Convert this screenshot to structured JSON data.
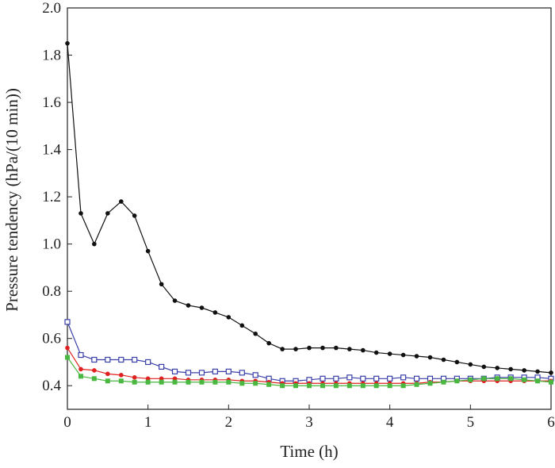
{
  "chart_data": {
    "type": "line",
    "title": "",
    "xlabel": "Time (h)",
    "ylabel": "Pressure  tendency (hPa/(10 min))",
    "xlim": [
      0,
      6
    ],
    "ylim": [
      0.3,
      2.0
    ],
    "xticks": [
      0,
      1,
      2,
      3,
      4,
      5,
      6
    ],
    "yticks": [
      0.4,
      0.6,
      0.8,
      1.0,
      1.2,
      1.4,
      1.6,
      1.8,
      2.0
    ],
    "x": [
      0,
      0.167,
      0.333,
      0.5,
      0.667,
      0.833,
      1.0,
      1.167,
      1.333,
      1.5,
      1.667,
      1.833,
      2.0,
      2.167,
      2.333,
      2.5,
      2.667,
      2.833,
      3.0,
      3.167,
      3.333,
      3.5,
      3.667,
      3.833,
      4.0,
      4.167,
      4.333,
      4.5,
      4.667,
      4.833,
      5.0,
      5.167,
      5.333,
      5.5,
      5.667,
      5.833,
      6.0
    ],
    "grid": false,
    "legend": "none",
    "series": [
      {
        "color": "#111111",
        "marker": "filled-circle",
        "values": [
          1.85,
          1.13,
          1.0,
          1.13,
          1.18,
          1.12,
          0.97,
          0.83,
          0.76,
          0.74,
          0.73,
          0.71,
          0.69,
          0.655,
          0.62,
          0.58,
          0.555,
          0.555,
          0.56,
          0.56,
          0.56,
          0.555,
          0.55,
          0.54,
          0.535,
          0.53,
          0.525,
          0.52,
          0.51,
          0.5,
          0.49,
          0.48,
          0.475,
          0.47,
          0.465,
          0.46,
          0.455
        ]
      },
      {
        "color": "#3a3fa8",
        "marker": "open-square",
        "values": [
          0.67,
          0.53,
          0.51,
          0.51,
          0.51,
          0.51,
          0.5,
          0.48,
          0.46,
          0.455,
          0.455,
          0.46,
          0.46,
          0.455,
          0.445,
          0.43,
          0.42,
          0.42,
          0.425,
          0.43,
          0.43,
          0.435,
          0.43,
          0.43,
          0.43,
          0.435,
          0.43,
          0.43,
          0.43,
          0.43,
          0.43,
          0.43,
          0.435,
          0.435,
          0.435,
          0.435,
          0.43
        ]
      },
      {
        "color": "#e02020",
        "marker": "filled-circle",
        "values": [
          0.56,
          0.47,
          0.465,
          0.45,
          0.445,
          0.435,
          0.43,
          0.43,
          0.43,
          0.425,
          0.425,
          0.425,
          0.425,
          0.42,
          0.42,
          0.415,
          0.41,
          0.41,
          0.41,
          0.41,
          0.41,
          0.41,
          0.41,
          0.41,
          0.41,
          0.41,
          0.41,
          0.415,
          0.415,
          0.42,
          0.42,
          0.42,
          0.42,
          0.42,
          0.42,
          0.42,
          0.42
        ]
      },
      {
        "color": "#4ab840",
        "marker": "filled-square",
        "values": [
          0.52,
          0.44,
          0.43,
          0.42,
          0.42,
          0.415,
          0.415,
          0.415,
          0.415,
          0.415,
          0.415,
          0.415,
          0.415,
          0.41,
          0.41,
          0.405,
          0.4,
          0.4,
          0.4,
          0.4,
          0.4,
          0.4,
          0.4,
          0.4,
          0.4,
          0.4,
          0.405,
          0.41,
          0.415,
          0.42,
          0.425,
          0.43,
          0.43,
          0.43,
          0.425,
          0.42,
          0.415
        ]
      }
    ]
  }
}
